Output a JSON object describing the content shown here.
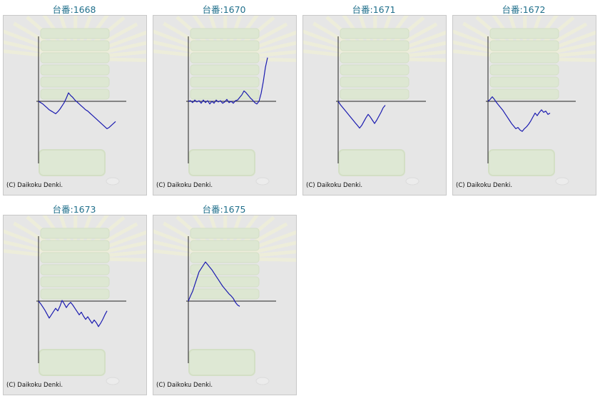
{
  "colors": {
    "title": "#1f6f8b",
    "line": "#1b1bb0",
    "axis": "#222222",
    "background": "#e6e6e6"
  },
  "chart_data": [
    {
      "type": "line",
      "title": "台番:1668",
      "footer": "(C) Daikoku Denki.",
      "values": [
        0,
        -200,
        -400,
        -700,
        -1000,
        -1300,
        -1500,
        -1700,
        -1900,
        -1600,
        -1200,
        -700,
        -200,
        500,
        1300,
        900,
        600,
        200,
        -100,
        -400,
        -700,
        -1000,
        -1300,
        -1500,
        -1800,
        -2100,
        -2400,
        -2700,
        -3000,
        -3300,
        -3600,
        -3900,
        -4200,
        -4000,
        -3700,
        -3400,
        -3100
      ]
    },
    {
      "type": "line",
      "title": "台番:1670",
      "footer": "(C) Daikoku Denki.",
      "values": [
        0,
        100,
        -200,
        200,
        -100,
        100,
        -300,
        200,
        -200,
        100,
        -400,
        0,
        -300,
        200,
        -100,
        100,
        -300,
        -100,
        300,
        -200,
        0,
        -300,
        100,
        200,
        600,
        1000,
        1600,
        1300,
        900,
        500,
        200,
        -200,
        -400,
        0,
        1200,
        3000,
        5200,
        6700
      ]
    },
    {
      "type": "line",
      "title": "台番:1671",
      "footer": "(C) Daikoku Denki.",
      "values": [
        0,
        -500,
        -900,
        -1300,
        -1700,
        -2100,
        -2500,
        -2900,
        -3300,
        -3700,
        -4100,
        -3700,
        -3100,
        -2500,
        -2000,
        -2400,
        -2900,
        -3400,
        -2900,
        -2300,
        -1700,
        -1000,
        -600
      ]
    },
    {
      "type": "line",
      "title": "台番:1672",
      "footer": "(C) Daikoku Denki.",
      "values": [
        0,
        300,
        700,
        300,
        -200,
        -600,
        -1000,
        -1400,
        -1900,
        -2400,
        -2900,
        -3400,
        -3800,
        -4200,
        -4000,
        -4400,
        -4600,
        -4200,
        -3900,
        -3500,
        -3000,
        -2400,
        -1800,
        -2200,
        -1700,
        -1300,
        -1700,
        -1500,
        -2000,
        -1800
      ]
    },
    {
      "type": "line",
      "title": "台番:1673",
      "footer": "(C) Daikoku Denki.",
      "values": [
        0,
        -400,
        -900,
        -1400,
        -2000,
        -2600,
        -2100,
        -1600,
        -1100,
        -1500,
        -800,
        100,
        -400,
        -1000,
        -500,
        -200,
        -600,
        -1100,
        -1600,
        -2100,
        -1700,
        -2300,
        -2800,
        -2400,
        -2900,
        -3400,
        -2900,
        -3300,
        -3900,
        -3400,
        -2800,
        -2100,
        -1500
      ]
    },
    {
      "type": "line",
      "title": "台番:1675",
      "footer": "(C) Daikoku Denki.",
      "values": [
        0,
        800,
        1500,
        2500,
        3500,
        4500,
        5000,
        5500,
        6000,
        5600,
        5200,
        4800,
        4300,
        3800,
        3300,
        2800,
        2300,
        1900,
        1500,
        1100,
        800,
        400,
        -200,
        -600,
        -800
      ]
    }
  ]
}
